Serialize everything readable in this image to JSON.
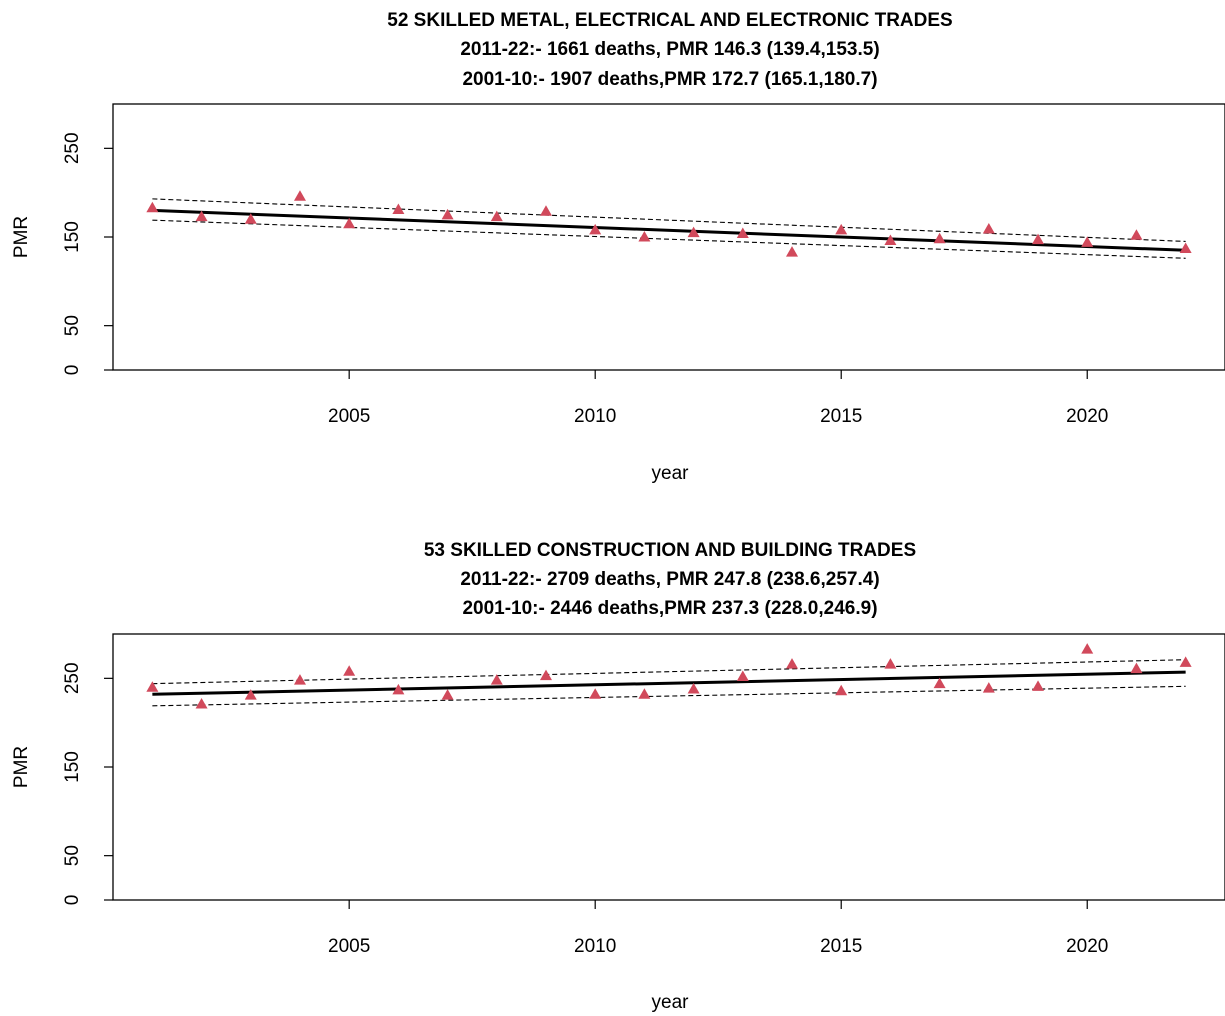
{
  "chart_data": [
    {
      "type": "scatter",
      "title": "52 SKILLED METAL, ELECTRICAL AND ELECTRONIC TRADES",
      "subtitle_lines": [
        "2011-22:- 1661 deaths, PMR 146.3 (139.4,153.5)",
        "2001-10:- 1907 deaths,PMR 172.7 (165.1,180.7)"
      ],
      "xlabel": "year",
      "ylabel": "PMR",
      "xlim": [
        2000.2,
        2022.8
      ],
      "ylim": [
        0,
        300
      ],
      "x_ticks": [
        2005,
        2010,
        2015,
        2020
      ],
      "y_ticks": [
        0,
        50,
        150,
        250
      ],
      "grid": false,
      "points_color": "#d1495b",
      "points": {
        "x": [
          2001,
          2002,
          2003,
          2004,
          2005,
          2006,
          2007,
          2008,
          2009,
          2010,
          2011,
          2012,
          2013,
          2014,
          2015,
          2016,
          2017,
          2018,
          2019,
          2020,
          2021,
          2022
        ],
        "y": [
          183,
          173,
          170,
          196,
          165,
          181,
          175,
          173,
          179,
          158,
          150,
          155,
          154,
          133,
          158,
          146,
          148,
          159,
          147,
          144,
          152,
          137
        ]
      },
      "trend": {
        "x": [
          2001,
          2022
        ],
        "y": [
          180,
          135
        ]
      },
      "ci_upper": {
        "x": [
          2001,
          2022
        ],
        "y": [
          193,
          145
        ]
      },
      "ci_lower": {
        "x": [
          2001,
          2022
        ],
        "y": [
          169,
          126
        ]
      }
    },
    {
      "type": "scatter",
      "title": "53 SKILLED CONSTRUCTION AND BUILDING TRADES",
      "subtitle_lines": [
        "2011-22:- 2709 deaths, PMR 247.8 (238.6,257.4)",
        "2001-10:- 2446 deaths,PMR 237.3 (228.0,246.9)"
      ],
      "xlabel": "year",
      "ylabel": "PMR",
      "xlim": [
        2000.2,
        2022.8
      ],
      "ylim": [
        0,
        300
      ],
      "x_ticks": [
        2005,
        2010,
        2015,
        2020
      ],
      "y_ticks": [
        0,
        50,
        150,
        250
      ],
      "grid": false,
      "points_color": "#d1495b",
      "points": {
        "x": [
          2001,
          2002,
          2003,
          2004,
          2005,
          2006,
          2007,
          2008,
          2009,
          2010,
          2011,
          2012,
          2013,
          2014,
          2015,
          2016,
          2017,
          2018,
          2019,
          2020,
          2021,
          2022
        ],
        "y": [
          240,
          221,
          231,
          248,
          258,
          237,
          231,
          248,
          253,
          232,
          232,
          238,
          252,
          266,
          236,
          266,
          244,
          239,
          241,
          283,
          261,
          268
        ]
      },
      "trend": {
        "x": [
          2001,
          2022
        ],
        "y": [
          232,
          257
        ]
      },
      "ci_upper": {
        "x": [
          2001,
          2022
        ],
        "y": [
          244,
          271
        ]
      },
      "ci_lower": {
        "x": [
          2001,
          2022
        ],
        "y": [
          219,
          241
        ]
      }
    }
  ]
}
